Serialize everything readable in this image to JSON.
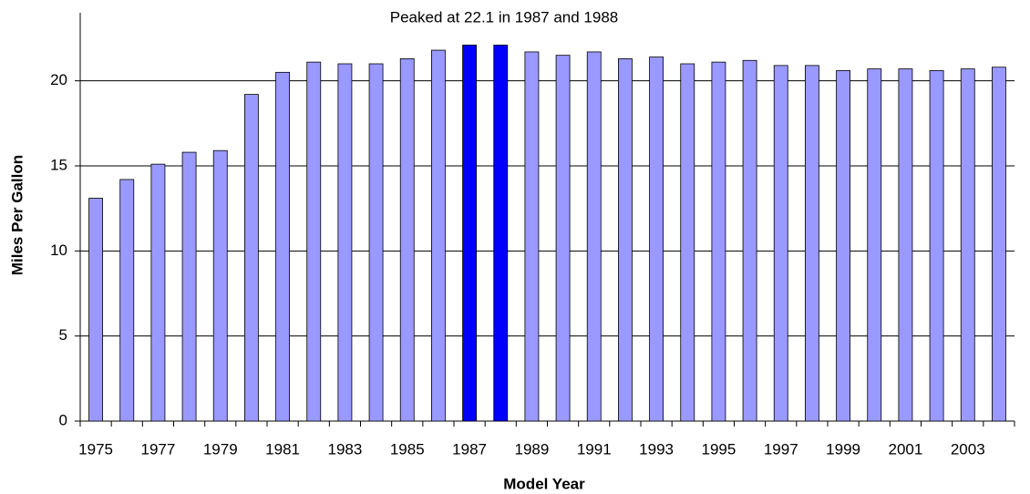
{
  "chart_data": {
    "type": "bar",
    "annotation": "Peaked at 22.1 in 1987 and 1988",
    "xlabel": "Model Year",
    "ylabel": "Miles Per Gallon",
    "categories": [
      "1975",
      null,
      "1977",
      null,
      "1979",
      null,
      "1981",
      null,
      "1983",
      null,
      "1985",
      null,
      "1987",
      null,
      "1989",
      null,
      "1991",
      null,
      "1993",
      null,
      "1995",
      null,
      "1997",
      null,
      "1999",
      null,
      "2001",
      null,
      "2003",
      null
    ],
    "values": [
      13.1,
      14.2,
      15.1,
      15.8,
      15.9,
      19.2,
      20.5,
      21.1,
      21.0,
      21.0,
      21.3,
      21.8,
      22.1,
      22.1,
      21.7,
      21.5,
      21.7,
      21.3,
      21.4,
      21.0,
      21.1,
      21.2,
      20.9,
      20.9,
      20.6,
      20.7,
      20.7,
      20.6,
      20.7,
      20.8
    ],
    "colors": [
      "#9999ff",
      "#9999ff",
      "#9999ff",
      "#9999ff",
      "#9999ff",
      "#9999ff",
      "#9999ff",
      "#9999ff",
      "#9999ff",
      "#9999ff",
      "#9999ff",
      "#9999ff",
      "#0000ff",
      "#0000ff",
      "#9999ff",
      "#9999ff",
      "#9999ff",
      "#9999ff",
      "#9999ff",
      "#9999ff",
      "#9999ff",
      "#9999ff",
      "#9999ff",
      "#9999ff",
      "#9999ff",
      "#9999ff",
      "#9999ff",
      "#9999ff",
      "#9999ff",
      "#9999ff"
    ],
    "ylim": [
      0,
      24
    ],
    "yticks": [
      0,
      5,
      10,
      15,
      20
    ],
    "grid": true
  }
}
